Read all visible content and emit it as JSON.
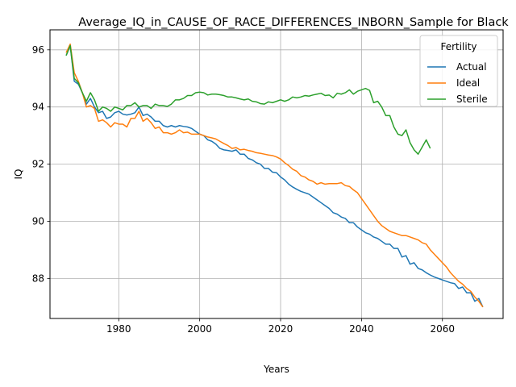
{
  "chart_data": {
    "type": "line",
    "title": "Average_IQ_in_CAUSE_OF_RACE_DIFFERENCES_INBORN_Sample for Black",
    "xlabel": "Years",
    "ylabel": "IQ",
    "xlim": [
      1963,
      2075
    ],
    "ylim": [
      86.6,
      96.7
    ],
    "xticks": [
      1980,
      2000,
      2020,
      2040,
      2060
    ],
    "yticks": [
      88,
      90,
      92,
      94,
      96
    ],
    "grid": true,
    "legend": {
      "title": "Fertility",
      "position": "top-right"
    },
    "series": [
      {
        "name": "Actual",
        "color": "#1f77b4",
        "x": [
          1967,
          1968,
          1969,
          1970,
          1971,
          1972,
          1973,
          1974,
          1975,
          1976,
          1977,
          1978,
          1979,
          1980,
          1981,
          1982,
          1983,
          1984,
          1985,
          1986,
          1987,
          1988,
          1989,
          1990,
          1991,
          1992,
          1993,
          1994,
          1995,
          1996,
          1997,
          1998,
          1999,
          2000,
          2001,
          2002,
          2003,
          2004,
          2005,
          2006,
          2007,
          2008,
          2009,
          2010,
          2011,
          2012,
          2013,
          2014,
          2015,
          2016,
          2017,
          2018,
          2019,
          2020,
          2021,
          2022,
          2023,
          2024,
          2025,
          2026,
          2027,
          2028,
          2029,
          2030,
          2031,
          2032,
          2033,
          2034,
          2035,
          2036,
          2037,
          2038,
          2039,
          2040,
          2041,
          2042,
          2043,
          2044,
          2045,
          2046,
          2047,
          2048,
          2049,
          2050,
          2051,
          2052,
          2053,
          2054,
          2055,
          2056,
          2057,
          2058,
          2059,
          2060,
          2061,
          2062,
          2063,
          2064,
          2065,
          2066,
          2067,
          2068,
          2069,
          2070
        ],
        "values": [
          95.8,
          96.15,
          94.9,
          94.8,
          94.5,
          94.1,
          94.3,
          94.0,
          93.8,
          93.85,
          93.6,
          93.65,
          93.8,
          93.85,
          93.75,
          93.72,
          93.75,
          93.8,
          94.0,
          93.7,
          93.75,
          93.65,
          93.5,
          93.5,
          93.35,
          93.3,
          93.35,
          93.3,
          93.35,
          93.32,
          93.3,
          93.25,
          93.15,
          93.05,
          93.0,
          92.85,
          92.8,
          92.7,
          92.55,
          92.5,
          92.48,
          92.45,
          92.5,
          92.35,
          92.35,
          92.2,
          92.15,
          92.05,
          92.0,
          91.85,
          91.85,
          91.72,
          91.7,
          91.55,
          91.45,
          91.3,
          91.2,
          91.12,
          91.05,
          91.0,
          90.95,
          90.85,
          90.75,
          90.65,
          90.55,
          90.45,
          90.3,
          90.25,
          90.15,
          90.1,
          89.95,
          89.95,
          89.8,
          89.7,
          89.6,
          89.55,
          89.45,
          89.4,
          89.3,
          89.2,
          89.2,
          89.05,
          89.05,
          88.75,
          88.8,
          88.5,
          88.55,
          88.35,
          88.3,
          88.2,
          88.12,
          88.05,
          88.0,
          87.95,
          87.9,
          87.85,
          87.82,
          87.65,
          87.7,
          87.5,
          87.5,
          87.2,
          87.3,
          87.0
        ]
      },
      {
        "name": "Ideal",
        "color": "#ff7f0e",
        "x": [
          1967,
          1968,
          1969,
          1970,
          1971,
          1972,
          1973,
          1974,
          1975,
          1976,
          1977,
          1978,
          1979,
          1980,
          1981,
          1982,
          1983,
          1984,
          1985,
          1986,
          1987,
          1988,
          1989,
          1990,
          1991,
          1992,
          1993,
          1994,
          1995,
          1996,
          1997,
          1998,
          1999,
          2000,
          2001,
          2002,
          2003,
          2004,
          2005,
          2006,
          2007,
          2008,
          2009,
          2010,
          2011,
          2012,
          2013,
          2014,
          2015,
          2016,
          2017,
          2018,
          2019,
          2020,
          2021,
          2022,
          2023,
          2024,
          2025,
          2026,
          2027,
          2028,
          2029,
          2030,
          2031,
          2032,
          2033,
          2034,
          2035,
          2036,
          2037,
          2038,
          2039,
          2040,
          2041,
          2042,
          2043,
          2044,
          2045,
          2046,
          2047,
          2048,
          2049,
          2050,
          2051,
          2052,
          2053,
          2054,
          2055,
          2056,
          2057,
          2058,
          2059,
          2060,
          2061,
          2062,
          2063,
          2064,
          2065,
          2066,
          2067,
          2068,
          2069,
          2070
        ],
        "values": [
          95.9,
          96.2,
          95.2,
          94.9,
          94.5,
          94.0,
          94.05,
          93.95,
          93.5,
          93.55,
          93.45,
          93.3,
          93.45,
          93.4,
          93.4,
          93.3,
          93.6,
          93.6,
          93.85,
          93.5,
          93.6,
          93.45,
          93.25,
          93.3,
          93.1,
          93.1,
          93.05,
          93.1,
          93.2,
          93.1,
          93.12,
          93.05,
          93.05,
          93.05,
          93.0,
          92.95,
          92.92,
          92.88,
          92.8,
          92.72,
          92.65,
          92.55,
          92.58,
          92.5,
          92.52,
          92.48,
          92.45,
          92.4,
          92.38,
          92.35,
          92.32,
          92.3,
          92.25,
          92.18,
          92.05,
          91.95,
          91.82,
          91.75,
          91.6,
          91.55,
          91.45,
          91.4,
          91.3,
          91.35,
          91.3,
          91.32,
          91.32,
          91.32,
          91.35,
          91.25,
          91.22,
          91.1,
          91.0,
          90.8,
          90.6,
          90.4,
          90.2,
          90.0,
          89.85,
          89.75,
          89.65,
          89.6,
          89.55,
          89.5,
          89.5,
          89.45,
          89.4,
          89.35,
          89.25,
          89.2,
          89.0,
          88.85,
          88.7,
          88.55,
          88.4,
          88.2,
          88.05,
          87.9,
          87.8,
          87.65,
          87.55,
          87.35,
          87.2,
          87.0
        ]
      },
      {
        "name": "Sterile",
        "color": "#2ca02c",
        "x": [
          1967,
          1968,
          1969,
          1970,
          1971,
          1972,
          1973,
          1974,
          1975,
          1976,
          1977,
          1978,
          1979,
          1980,
          1981,
          1982,
          1983,
          1984,
          1985,
          1986,
          1987,
          1988,
          1989,
          1990,
          1991,
          1992,
          1993,
          1994,
          1995,
          1996,
          1997,
          1998,
          1999,
          2000,
          2001,
          2002,
          2003,
          2004,
          2005,
          2006,
          2007,
          2008,
          2009,
          2010,
          2011,
          2012,
          2013,
          2014,
          2015,
          2016,
          2017,
          2018,
          2019,
          2020,
          2021,
          2022,
          2023,
          2024,
          2025,
          2026,
          2027,
          2028,
          2029,
          2030,
          2031,
          2032,
          2033,
          2034,
          2035,
          2036,
          2037,
          2038,
          2039,
          2040,
          2041,
          2042,
          2043,
          2044,
          2045,
          2046,
          2047,
          2048,
          2049,
          2050,
          2051,
          2052,
          2053,
          2054,
          2055,
          2056,
          2057
        ],
        "values": [
          95.8,
          96.15,
          95.0,
          94.85,
          94.5,
          94.2,
          94.5,
          94.25,
          93.85,
          94.0,
          93.95,
          93.85,
          94.0,
          93.95,
          93.9,
          94.05,
          94.05,
          94.15,
          94.0,
          94.05,
          94.05,
          93.95,
          94.1,
          94.05,
          94.05,
          94.02,
          94.1,
          94.25,
          94.25,
          94.3,
          94.4,
          94.4,
          94.5,
          94.52,
          94.5,
          94.42,
          94.45,
          94.45,
          94.43,
          94.4,
          94.35,
          94.35,
          94.32,
          94.28,
          94.25,
          94.28,
          94.2,
          94.18,
          94.12,
          94.1,
          94.18,
          94.15,
          94.2,
          94.25,
          94.2,
          94.25,
          94.35,
          94.32,
          94.35,
          94.4,
          94.38,
          94.42,
          94.45,
          94.48,
          94.4,
          94.42,
          94.32,
          94.48,
          94.45,
          94.5,
          94.6,
          94.45,
          94.55,
          94.6,
          94.65,
          94.58,
          94.15,
          94.2,
          94.0,
          93.7,
          93.7,
          93.3,
          93.05,
          93.0,
          93.2,
          92.75,
          92.5,
          92.35,
          92.6,
          92.85,
          92.55
        ]
      }
    ]
  }
}
